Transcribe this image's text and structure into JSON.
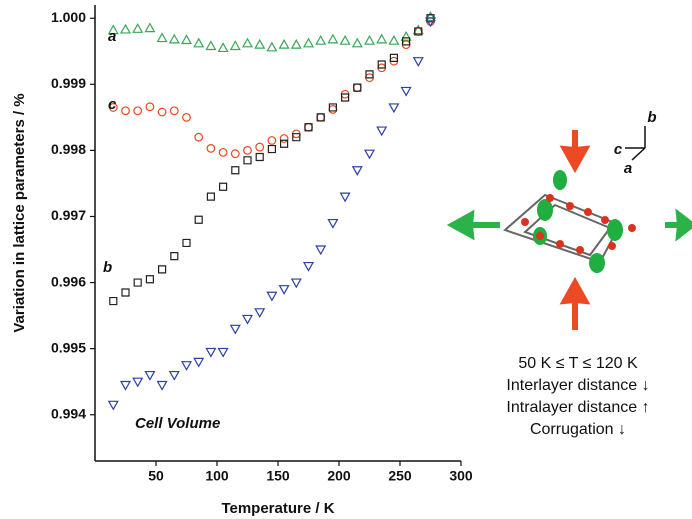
{
  "chart_data": {
    "type": "scatter",
    "x_label": "Temperature / K",
    "y_label": "Variation in lattice parameters / %",
    "xlim": [
      0,
      300
    ],
    "xticks": [
      50,
      100,
      150,
      200,
      250,
      300
    ],
    "ylim": [
      0.9933,
      1.0002
    ],
    "yticks": [
      0.994,
      0.995,
      0.996,
      0.997,
      0.998,
      0.999,
      {
        "value": 1.0,
        "label": "1.000"
      }
    ],
    "x": [
      15,
      25,
      35,
      45,
      55,
      65,
      75,
      85,
      95,
      105,
      115,
      125,
      135,
      145,
      155,
      165,
      175,
      185,
      195,
      205,
      215,
      225,
      235,
      245,
      255,
      265,
      275
    ],
    "series": [
      {
        "name": "a",
        "color": "#3aa655",
        "marker": "triangle-up",
        "values": [
          0.99982,
          0.99983,
          0.99984,
          0.99985,
          0.9997,
          0.99968,
          0.99967,
          0.99962,
          0.99958,
          0.99955,
          0.99958,
          0.99962,
          0.9996,
          0.99956,
          0.9996,
          0.9996,
          0.99962,
          0.99966,
          0.99968,
          0.99966,
          0.99962,
          0.99966,
          0.99968,
          0.99966,
          0.99972,
          0.99982,
          1.00002
        ]
      },
      {
        "name": "c",
        "color": "#e8461e",
        "marker": "circle",
        "values": [
          0.99865,
          0.9986,
          0.9986,
          0.99866,
          0.99858,
          0.9986,
          0.9985,
          0.9982,
          0.99803,
          0.99797,
          0.99795,
          0.998,
          0.99805,
          0.99815,
          0.99818,
          0.99825,
          0.99835,
          0.9985,
          0.99862,
          0.99885,
          0.99895,
          0.9991,
          0.99925,
          0.99935,
          0.9996,
          0.9998,
          0.99995
        ]
      },
      {
        "name": "b",
        "color": "#222222",
        "marker": "square",
        "values": [
          0.99572,
          0.99585,
          0.996,
          0.99605,
          0.9962,
          0.9964,
          0.9966,
          0.99695,
          0.9973,
          0.99745,
          0.9977,
          0.99785,
          0.9979,
          0.99802,
          0.9981,
          0.9982,
          0.99835,
          0.9985,
          0.99865,
          0.9988,
          0.99895,
          0.99915,
          0.9993,
          0.9994,
          0.99965,
          0.9998,
          1.0
        ]
      },
      {
        "name": "Cell Volume",
        "color": "#2b3fa6",
        "marker": "triangle-down",
        "values": [
          0.99415,
          0.99445,
          0.9945,
          0.9946,
          0.99445,
          0.9946,
          0.99475,
          0.9948,
          0.99495,
          0.99495,
          0.9953,
          0.99545,
          0.99555,
          0.9958,
          0.9959,
          0.996,
          0.99625,
          0.9965,
          0.9969,
          0.9973,
          0.9977,
          0.99795,
          0.9983,
          0.99865,
          0.9989,
          0.99935,
          0.99995
        ]
      }
    ],
    "inset_axes": [
      "b",
      "c",
      "a"
    ],
    "annotations": [
      "50 K ≤ T ≤ 120 K",
      "Interlayer distance ↓",
      "Intralayer distance ↑",
      "Corrugation ↓"
    ]
  }
}
